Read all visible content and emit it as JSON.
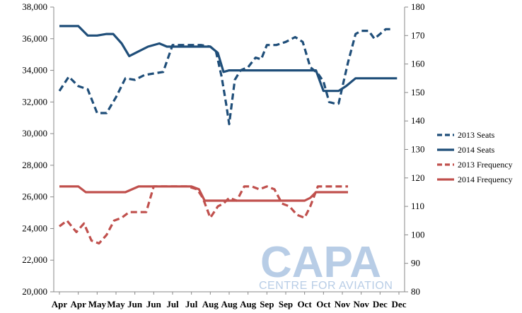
{
  "chart_data": {
    "type": "line",
    "title": "",
    "xlabel": "",
    "ylabel": "",
    "categories": [
      "Apr",
      "Apr",
      "May",
      "May",
      "Jun",
      "Jun",
      "Jul",
      "Jul",
      "Aug",
      "Aug",
      "Aug",
      "Sep",
      "Sep",
      "Oct",
      "Oct",
      "Nov",
      "Nov",
      "Dec",
      "Dec"
    ],
    "y_left": {
      "min": 20000,
      "max": 38000,
      "step": 2000,
      "ticks": [
        "20,000",
        "22,000",
        "24,000",
        "26,000",
        "28,000",
        "30,000",
        "32,000",
        "34,000",
        "36,000",
        "38,000"
      ]
    },
    "y_right": {
      "min": 80,
      "max": 180,
      "step": 10,
      "ticks": [
        "80",
        "90",
        "100",
        "110",
        "120",
        "130",
        "140",
        "150",
        "160",
        "170",
        "180"
      ]
    },
    "grid": false,
    "legend_position": "right",
    "series": [
      {
        "name": "2013 Seats",
        "axis": "left",
        "style": "dashed",
        "color": "#1f4e79",
        "points": [
          [
            0,
            32700
          ],
          [
            0.5,
            33600
          ],
          [
            1,
            33000
          ],
          [
            1.5,
            32800
          ],
          [
            2,
            31300
          ],
          [
            2.5,
            31300
          ],
          [
            3,
            32300
          ],
          [
            3.5,
            33500
          ],
          [
            4,
            33400
          ],
          [
            4.5,
            33700
          ],
          [
            5,
            33800
          ],
          [
            5.5,
            33900
          ],
          [
            6,
            35600
          ],
          [
            6.5,
            35600
          ],
          [
            7,
            35600
          ],
          [
            7.5,
            35600
          ],
          [
            8,
            35500
          ],
          [
            8.3,
            35200
          ],
          [
            8.6,
            33600
          ],
          [
            8.85,
            31800
          ],
          [
            9,
            30600
          ],
          [
            9.3,
            33400
          ],
          [
            9.6,
            34000
          ],
          [
            10,
            34200
          ],
          [
            10.4,
            34800
          ],
          [
            10.7,
            34700
          ],
          [
            11,
            35600
          ],
          [
            11.5,
            35600
          ],
          [
            12,
            35800
          ],
          [
            12.5,
            36100
          ],
          [
            12.9,
            35800
          ],
          [
            13.3,
            34200
          ],
          [
            13.7,
            33800
          ],
          [
            14,
            33300
          ],
          [
            14.3,
            32000
          ],
          [
            14.6,
            31900
          ],
          [
            14.8,
            31900
          ],
          [
            15.3,
            34500
          ],
          [
            15.7,
            36300
          ],
          [
            16,
            36500
          ],
          [
            16.4,
            36500
          ],
          [
            16.7,
            36000
          ],
          [
            17,
            36300
          ],
          [
            17.3,
            36600
          ],
          [
            17.6,
            36600
          ]
        ]
      },
      {
        "name": "2014 Seats",
        "axis": "left",
        "style": "solid",
        "color": "#1f4e79",
        "points": [
          [
            0,
            36800
          ],
          [
            0.5,
            36800
          ],
          [
            1,
            36800
          ],
          [
            1.5,
            36200
          ],
          [
            2,
            36200
          ],
          [
            2.5,
            36300
          ],
          [
            2.85,
            36300
          ],
          [
            3.3,
            35700
          ],
          [
            3.7,
            34900
          ],
          [
            4.2,
            35200
          ],
          [
            4.7,
            35500
          ],
          [
            5.3,
            35700
          ],
          [
            5.7,
            35500
          ],
          [
            6,
            35500
          ],
          [
            6.5,
            35500
          ],
          [
            7,
            35500
          ],
          [
            7.5,
            35500
          ],
          [
            8,
            35500
          ],
          [
            8.4,
            35100
          ],
          [
            8.7,
            33900
          ],
          [
            9,
            34000
          ],
          [
            9.5,
            34000
          ],
          [
            10,
            34000
          ],
          [
            12,
            34000
          ],
          [
            13,
            34000
          ],
          [
            13.6,
            34000
          ],
          [
            14,
            32700
          ],
          [
            14.5,
            32700
          ],
          [
            14.8,
            32700
          ],
          [
            15.2,
            33000
          ],
          [
            15.7,
            33500
          ],
          [
            16,
            33500
          ],
          [
            17,
            33500
          ],
          [
            17.9,
            33500
          ]
        ]
      },
      {
        "name": "2013 Frequency",
        "axis": "right",
        "style": "dashed",
        "color": "#c0504d",
        "points": [
          [
            0,
            103
          ],
          [
            0.4,
            105
          ],
          [
            0.9,
            101
          ],
          [
            1.3,
            104
          ],
          [
            1.7,
            98
          ],
          [
            2.1,
            97
          ],
          [
            2.5,
            100
          ],
          [
            2.9,
            105
          ],
          [
            3.3,
            106
          ],
          [
            3.7,
            108
          ],
          [
            4.2,
            108
          ],
          [
            4.6,
            108
          ],
          [
            5,
            117
          ],
          [
            5.5,
            117
          ],
          [
            6,
            117
          ],
          [
            6.4,
            117
          ],
          [
            6.8,
            117
          ],
          [
            7.3,
            116
          ],
          [
            7.6,
            113
          ],
          [
            8,
            106
          ],
          [
            8.4,
            110
          ],
          [
            8.7,
            111
          ],
          [
            9,
            113
          ],
          [
            9.4,
            112
          ],
          [
            9.8,
            117
          ],
          [
            10.2,
            117
          ],
          [
            10.6,
            116
          ],
          [
            11,
            117
          ],
          [
            11.4,
            116
          ],
          [
            11.8,
            111
          ],
          [
            12.2,
            110
          ],
          [
            12.6,
            107
          ],
          [
            13,
            106
          ],
          [
            13.3,
            110
          ],
          [
            13.7,
            117
          ],
          [
            14.2,
            117
          ],
          [
            14.8,
            117
          ],
          [
            15.3,
            117
          ]
        ]
      },
      {
        "name": "2014 Frequency",
        "axis": "right",
        "style": "solid",
        "color": "#c0504d",
        "points": [
          [
            0,
            117
          ],
          [
            0.5,
            117
          ],
          [
            1,
            117
          ],
          [
            1.4,
            115
          ],
          [
            2,
            115
          ],
          [
            2.5,
            115
          ],
          [
            3,
            115
          ],
          [
            3.5,
            115
          ],
          [
            4.2,
            117
          ],
          [
            4.7,
            117
          ],
          [
            5.2,
            117
          ],
          [
            5.8,
            117
          ],
          [
            6.5,
            117
          ],
          [
            7,
            117
          ],
          [
            7.4,
            116
          ],
          [
            7.7,
            112
          ],
          [
            8,
            112
          ],
          [
            8.5,
            112
          ],
          [
            9,
            112
          ],
          [
            9.5,
            112
          ],
          [
            10,
            112
          ],
          [
            10.5,
            112
          ],
          [
            11,
            112
          ],
          [
            11.5,
            112
          ],
          [
            12,
            112
          ],
          [
            12.5,
            112
          ],
          [
            13,
            112
          ],
          [
            13.3,
            113
          ],
          [
            13.6,
            115
          ],
          [
            14,
            115
          ],
          [
            14.5,
            115
          ],
          [
            15,
            115
          ],
          [
            15.3,
            115
          ]
        ]
      }
    ]
  },
  "watermark": {
    "brand": "CAPA",
    "subtitle": "CENTRE FOR AVIATION"
  }
}
